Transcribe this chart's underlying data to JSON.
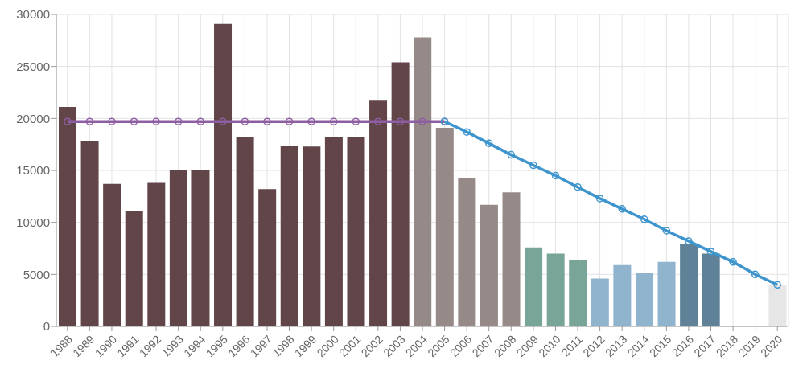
{
  "chart_data": {
    "type": "bar",
    "categories": [
      "1988",
      "1989",
      "1990",
      "1991",
      "1992",
      "1993",
      "1994",
      "1995",
      "1996",
      "1997",
      "1998",
      "1999",
      "2000",
      "2001",
      "2002",
      "2003",
      "2004",
      "2005",
      "2006",
      "2007",
      "2008",
      "2009",
      "2010",
      "2011",
      "2012",
      "2013",
      "2014",
      "2015",
      "2016",
      "2017",
      "2018",
      "2019",
      "2020"
    ],
    "series": [
      {
        "values": [
          21100,
          17800,
          13700,
          11100,
          13800,
          15000,
          15000,
          29100,
          18200,
          13200,
          17400,
          17300,
          18200,
          18200,
          21700,
          25400,
          27800,
          19100,
          14300,
          11700,
          12900,
          7600,
          7000,
          6400,
          4600,
          5900,
          5100,
          6200,
          7900,
          7000,
          null,
          null,
          4000
        ],
        "colors": [
          "#614548",
          "#614548",
          "#614548",
          "#614548",
          "#614548",
          "#614548",
          "#614548",
          "#614548",
          "#614548",
          "#614548",
          "#614548",
          "#614548",
          "#614548",
          "#614548",
          "#614548",
          "#614548",
          "#968a88",
          "#968a88",
          "#968a88",
          "#968a88",
          "#968a88",
          "#78a597",
          "#78a597",
          "#78a597",
          "#90b4ce",
          "#90b4ce",
          "#90b4ce",
          "#90b4ce",
          "#5f8298",
          "#5f8298",
          "#5f8298",
          "#5f8298",
          "#e6e6e6"
        ]
      },
      {
        "type": "line",
        "color": "#8e5ea2",
        "values": [
          19700,
          19700,
          19700,
          19700,
          19700,
          19700,
          19700,
          19700,
          19700,
          19700,
          19700,
          19700,
          19700,
          19700,
          19700,
          19700,
          19700,
          19700,
          null,
          null,
          null,
          null,
          null,
          null,
          null,
          null,
          null,
          null,
          null,
          null,
          null,
          null,
          null
        ]
      },
      {
        "type": "line",
        "color": "#3e95cd",
        "values": [
          null,
          null,
          null,
          null,
          null,
          null,
          null,
          null,
          null,
          null,
          null,
          null,
          null,
          null,
          null,
          null,
          null,
          19700,
          18700,
          17600,
          16500,
          15500,
          14500,
          13400,
          12300,
          11300,
          10300,
          9200,
          8200,
          7200,
          6200,
          5000,
          4000
        ]
      }
    ],
    "ylim": [
      0,
      30000
    ],
    "yticks": [
      0,
      5000,
      10000,
      15000,
      20000,
      25000,
      30000
    ],
    "grid": true,
    "legend": false,
    "marker": "circle",
    "line_style": "solid"
  }
}
